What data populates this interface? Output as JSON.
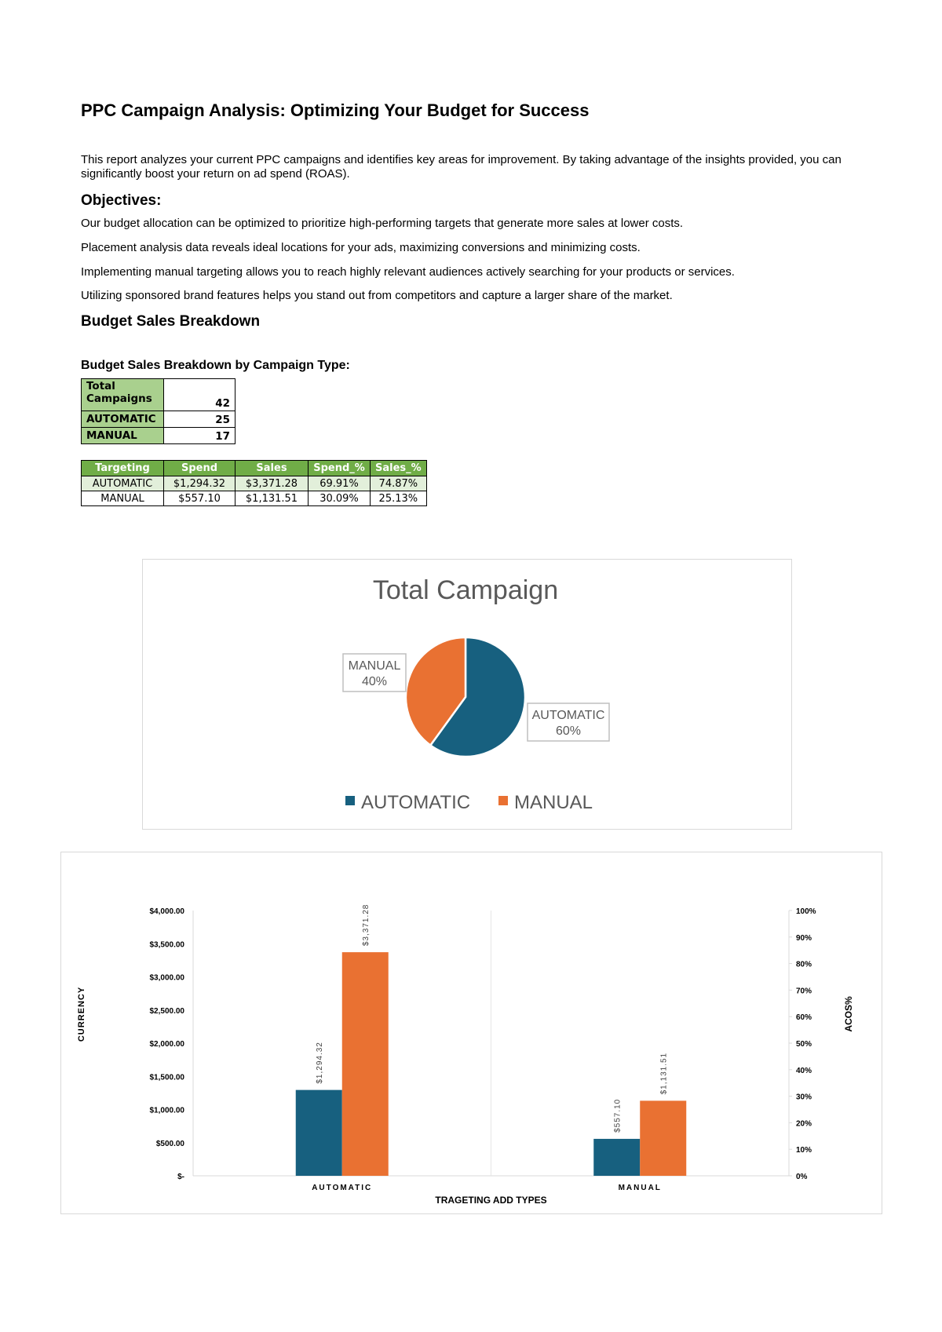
{
  "title": "PPC Campaign Analysis: Optimizing Your Budget for Success",
  "intro": "This report analyzes your current PPC campaigns and identifies key areas for improvement. By taking advantage of the insights provided, you can significantly boost your return on ad spend (ROAS).",
  "objectives": {
    "heading": "Objectives:",
    "items": [
      "Our budget allocation can be optimized to prioritize high-performing targets that generate more sales at lower costs.",
      "Placement analysis data reveals ideal locations for your ads, maximizing conversions and minimizing costs.",
      "Implementing manual targeting allows you to reach highly relevant audiences actively searching for your products or services.",
      "Utilizing sponsored brand features helps you stand out from competitors and capture a larger share of the market."
    ]
  },
  "section_heading": "Budget Sales Breakdown",
  "sub_heading": "Budget Sales Breakdown by Campaign Type:",
  "counts_table": [
    {
      "label": "Total Campaigns",
      "value": "42"
    },
    {
      "label": "AUTOMATIC",
      "value": "25"
    },
    {
      "label": "MANUAL",
      "value": "17"
    }
  ],
  "targeting_table": {
    "headers": [
      "Targeting",
      "Spend",
      "Sales",
      "Spend_%",
      "Sales_%"
    ],
    "rows": [
      [
        "AUTOMATIC",
        "$1,294.32",
        "$3,371.28",
        "69.91%",
        "74.87%"
      ],
      [
        "MANUAL",
        "$557.10",
        "$1,131.51",
        "30.09%",
        "25.13%"
      ]
    ]
  },
  "colors": {
    "automatic": "#17607f",
    "manual": "#e97132",
    "header_green": "#70ad47",
    "label_green": "#a9d08e"
  },
  "chart_data": [
    {
      "type": "pie",
      "title": "Total Campaign",
      "categories": [
        "AUTOMATIC",
        "MANUAL"
      ],
      "values": [
        60,
        40
      ],
      "data_labels": [
        "60%",
        "40%"
      ],
      "legend": [
        "AUTOMATIC",
        "MANUAL"
      ],
      "legend_position": "bottom"
    },
    {
      "type": "bar",
      "categories": [
        "AUTOMATIC",
        "MANUAL"
      ],
      "series": [
        {
          "values": [
            1294.32,
            557.1
          ],
          "labels": [
            "$1,294.32",
            "$557.10"
          ]
        },
        {
          "values": [
            3371.28,
            1131.51
          ],
          "labels": [
            "$3,371.28",
            "$1,131.51"
          ]
        }
      ],
      "xlabel": "TRAGETING ADD TYPES",
      "ylabel": "CURRENCY",
      "y2label": "ACOS%",
      "ylim": [
        0,
        4000
      ],
      "y2lim": [
        0,
        100
      ],
      "yticks": [
        "$-",
        "$500.00",
        "$1,000.00",
        "$1,500.00",
        "$2,000.00",
        "$2,500.00",
        "$3,000.00",
        "$3,500.00",
        "$4,000.00"
      ],
      "y2ticks": [
        "0%",
        "10%",
        "20%",
        "30%",
        "40%",
        "50%",
        "60%",
        "70%",
        "80%",
        "90%",
        "100%"
      ],
      "grid": false
    }
  ]
}
